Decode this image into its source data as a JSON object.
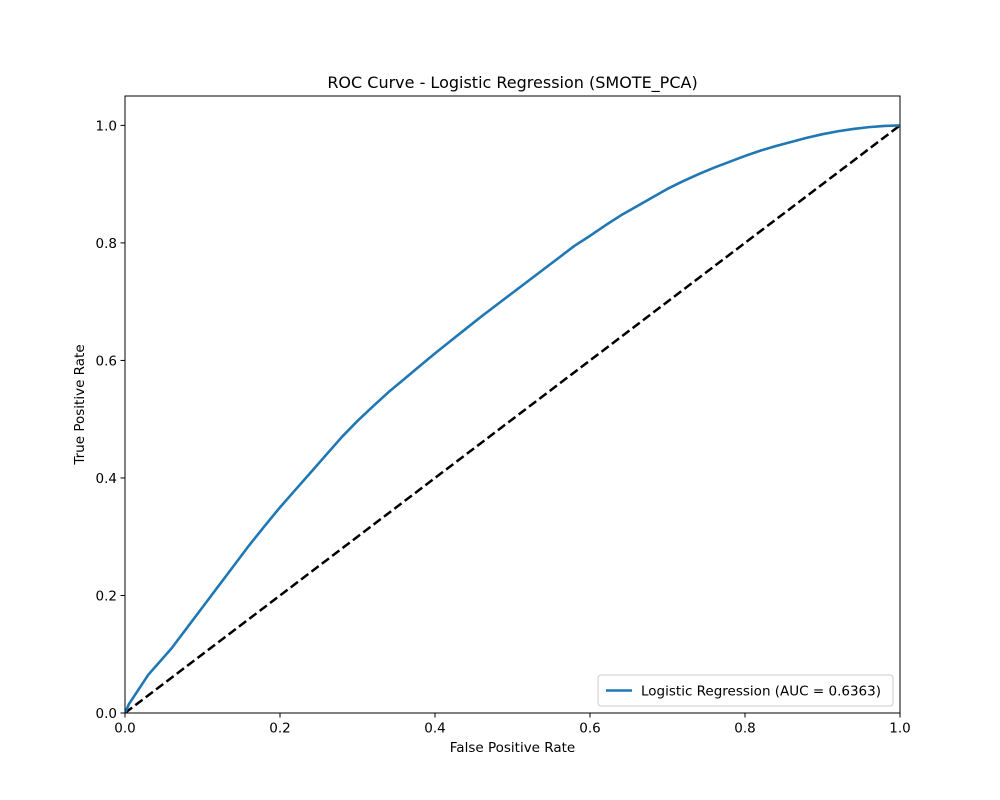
{
  "chart_data": {
    "type": "line",
    "title": "ROC Curve - Logistic Regression (SMOTE_PCA)",
    "xlabel": "False Positive Rate",
    "ylabel": "True Positive Rate",
    "xlim": [
      0.0,
      1.0
    ],
    "ylim": [
      0.0,
      1.05
    ],
    "x_ticks": [
      0.0,
      0.2,
      0.4,
      0.6,
      0.8,
      1.0
    ],
    "x_tick_labels": [
      "0.0",
      "0.2",
      "0.4",
      "0.6",
      "0.8",
      "1.0"
    ],
    "y_ticks": [
      0.0,
      0.2,
      0.4,
      0.6,
      0.8,
      1.0
    ],
    "y_tick_labels": [
      "0.0",
      "0.2",
      "0.4",
      "0.6",
      "0.8",
      "1.0"
    ],
    "grid": false,
    "legend_position": "lower-right",
    "series": [
      {
        "name": "Logistic Regression (AUC = 0.6363)",
        "color": "#1f77b4",
        "style": "solid",
        "x": [
          0.0,
          0.005,
          0.01,
          0.02,
          0.03,
          0.04,
          0.05,
          0.06,
          0.08,
          0.1,
          0.12,
          0.14,
          0.16,
          0.18,
          0.2,
          0.22,
          0.24,
          0.26,
          0.28,
          0.3,
          0.32,
          0.34,
          0.36,
          0.38,
          0.4,
          0.42,
          0.44,
          0.46,
          0.48,
          0.5,
          0.52,
          0.54,
          0.56,
          0.58,
          0.6,
          0.62,
          0.64,
          0.66,
          0.68,
          0.7,
          0.72,
          0.74,
          0.76,
          0.78,
          0.8,
          0.82,
          0.84,
          0.86,
          0.88,
          0.9,
          0.92,
          0.94,
          0.96,
          0.98,
          1.0
        ],
        "y": [
          0.0,
          0.015,
          0.025,
          0.045,
          0.065,
          0.08,
          0.095,
          0.11,
          0.145,
          0.18,
          0.215,
          0.25,
          0.285,
          0.318,
          0.35,
          0.38,
          0.41,
          0.44,
          0.47,
          0.497,
          0.522,
          0.546,
          0.568,
          0.59,
          0.612,
          0.633,
          0.654,
          0.675,
          0.695,
          0.715,
          0.735,
          0.755,
          0.775,
          0.795,
          0.812,
          0.83,
          0.847,
          0.862,
          0.877,
          0.892,
          0.905,
          0.917,
          0.928,
          0.938,
          0.948,
          0.957,
          0.965,
          0.972,
          0.979,
          0.985,
          0.99,
          0.994,
          0.997,
          0.999,
          1.0
        ]
      },
      {
        "name": "",
        "color": "#000000",
        "style": "dashed",
        "x": [
          0.0,
          1.0
        ],
        "y": [
          0.0,
          1.0
        ]
      }
    ]
  }
}
